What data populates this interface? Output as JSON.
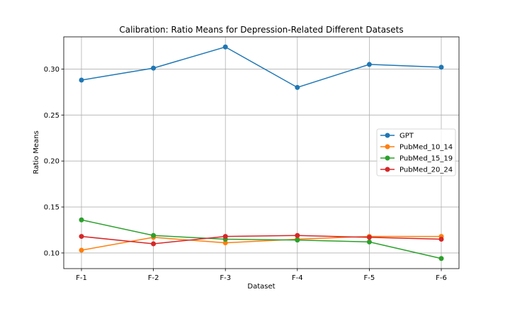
{
  "chart_data": {
    "type": "line",
    "title": "Calibration: Ratio Means for Depression-Related Different Datasets",
    "xlabel": "Dataset",
    "ylabel": "Ratio Means",
    "categories": [
      "F-1",
      "F-2",
      "F-3",
      "F-4",
      "F-5",
      "F-6"
    ],
    "ylim": [
      0.083,
      0.335
    ],
    "yticks": [
      "0.10",
      "0.15",
      "0.20",
      "0.25",
      "0.30"
    ],
    "grid": true,
    "legend_position": "center-right",
    "series": [
      {
        "name": "GPT",
        "color": "#1f77b4",
        "values": [
          0.288,
          0.301,
          0.324,
          0.28,
          0.305,
          0.302
        ]
      },
      {
        "name": "PubMed_10_14",
        "color": "#ff7f0e",
        "values": [
          0.103,
          0.117,
          0.111,
          0.115,
          0.118,
          0.118
        ]
      },
      {
        "name": "PubMed_15_19",
        "color": "#2ca02c",
        "values": [
          0.136,
          0.119,
          0.115,
          0.114,
          0.112,
          0.094
        ]
      },
      {
        "name": "PubMed_20_24",
        "color": "#d62728",
        "values": [
          0.118,
          0.11,
          0.118,
          0.119,
          0.117,
          0.115
        ]
      }
    ]
  }
}
